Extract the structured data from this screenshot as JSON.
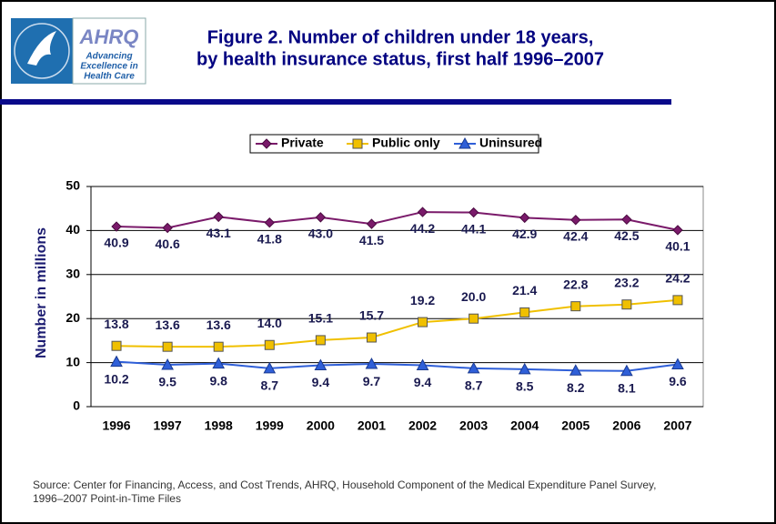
{
  "header": {
    "logo_text": "AHRQ",
    "tagline": [
      "Advancing",
      "Excellence in",
      "Health Care"
    ]
  },
  "chart_data": {
    "type": "line",
    "title": [
      "Figure 2. Number of children under 18 years,",
      "by health insurance status, first half 1996–2007"
    ],
    "y_label": "Number in millions",
    "categories": [
      "1996",
      "1997",
      "1998",
      "1999",
      "2000",
      "2001",
      "2002",
      "2003",
      "2004",
      "2005",
      "2006",
      "2007"
    ],
    "series": [
      {
        "name": "Private",
        "color": "#7a1a6a",
        "marker": "diamond",
        "values": [
          40.9,
          40.6,
          43.1,
          41.8,
          43.0,
          41.5,
          44.2,
          44.1,
          42.9,
          42.4,
          42.5,
          40.1
        ],
        "value_labels": [
          "40.9",
          "40.6",
          "43.1",
          "41.8",
          "43.0",
          "41.5",
          "44.2",
          "44.1",
          "42.9",
          "42.4",
          "42.5",
          "40.1"
        ]
      },
      {
        "name": "Public only",
        "color": "#f0c000",
        "marker": "square",
        "values": [
          13.8,
          13.6,
          13.6,
          14.0,
          15.1,
          15.7,
          19.2,
          20.0,
          21.4,
          22.8,
          23.2,
          24.2
        ],
        "value_labels": [
          "13.8",
          "13.6",
          "13.6",
          "14.0",
          "15.1",
          "15.7",
          "19.2",
          "20.0",
          "21.4",
          "22.8",
          "23.2",
          "24.2"
        ]
      },
      {
        "name": "Uninsured",
        "color": "#2f5fd8",
        "marker": "triangle",
        "values": [
          10.2,
          9.5,
          9.8,
          8.7,
          9.4,
          9.7,
          9.4,
          8.7,
          8.5,
          8.2,
          8.1,
          9.6
        ],
        "value_labels": [
          "10.2",
          "9.5",
          "9.8",
          "8.7",
          "9.4",
          "9.7",
          "9.4",
          "8.7",
          "8.5",
          "8.2",
          "8.1",
          "9.6"
        ]
      }
    ],
    "ylim": [
      0,
      50
    ],
    "yticks": [
      0,
      10,
      20,
      30,
      40,
      50
    ],
    "grid": true,
    "legend": "top",
    "source": [
      "Source: Center for Financing, Access, and Cost Trends, AHRQ, Household Component of the Medical Expenditure Panel Survey,",
      "1996–2007 Point-in-Time Files"
    ]
  }
}
